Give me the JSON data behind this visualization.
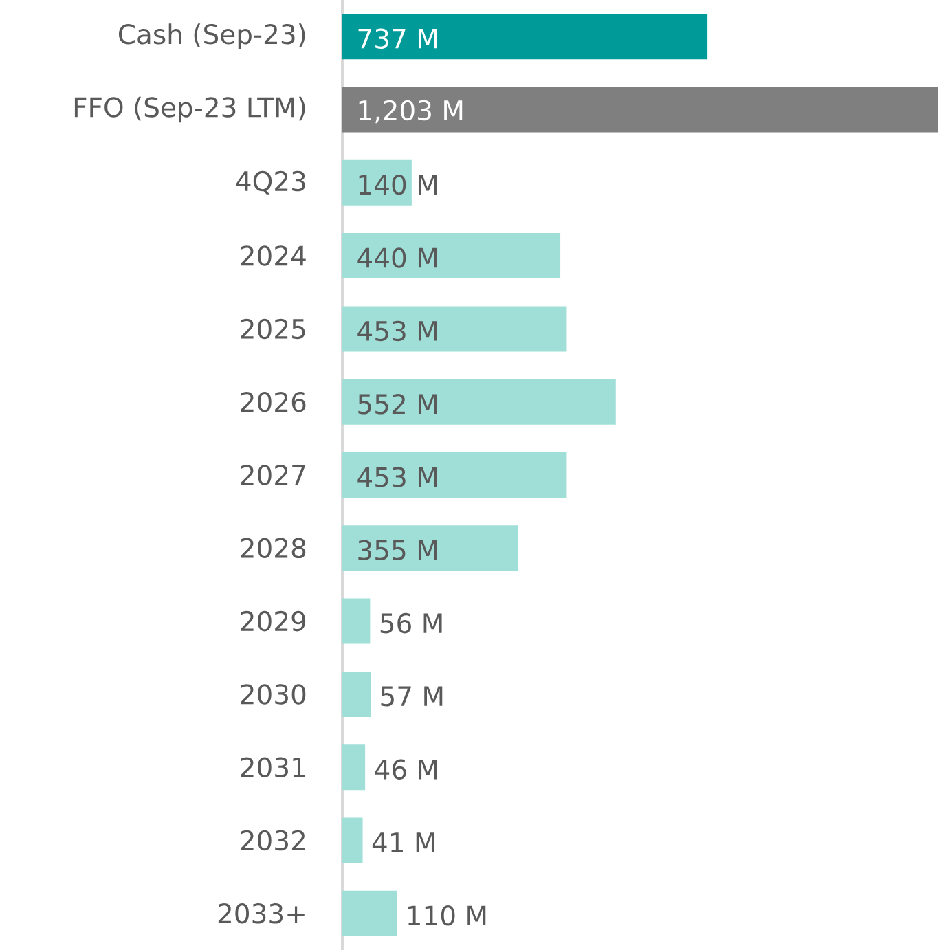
{
  "chart_data": {
    "type": "bar",
    "orientation": "horizontal",
    "categories": [
      "Cash (Sep-23)",
      "FFO (Sep-23 LTM)",
      "4Q23",
      "2024",
      "2025",
      "2026",
      "2027",
      "2028",
      "2029",
      "2030",
      "2031",
      "2032",
      "2033+"
    ],
    "values": [
      737,
      1203,
      140,
      440,
      453,
      552,
      453,
      355,
      56,
      57,
      46,
      41,
      110
    ],
    "value_labels": [
      "737 M",
      "1,203 M",
      "140 M",
      "440 M",
      "453 M",
      "552 M",
      "453 M",
      "355 M",
      "56 M",
      "57 M",
      "46 M",
      "41 M",
      "110 M"
    ],
    "colors": [
      "#009b98",
      "#7f7f7f",
      "#a0dfd7",
      "#a0dfd7",
      "#a0dfd7",
      "#a0dfd7",
      "#a0dfd7",
      "#a0dfd7",
      "#a0dfd7",
      "#a0dfd7",
      "#a0dfd7",
      "#a0dfd7",
      "#a0dfd7"
    ],
    "xlim": [
      0,
      1210
    ]
  }
}
